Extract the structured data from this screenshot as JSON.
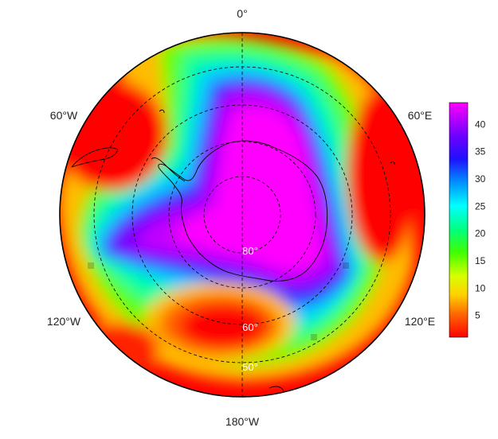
{
  "map": {
    "projection": "south-polar-stereographic",
    "longitude_labels": {
      "top": "0°",
      "upper_left": "60°W",
      "upper_right": "60°E",
      "lower_left": "120°W",
      "lower_right": "120°E",
      "bottom": "180°W"
    },
    "latitude_labels": [
      "80°",
      "60°",
      "50°"
    ],
    "colorbar": {
      "ticks": [
        "5",
        "10",
        "15",
        "20",
        "25",
        "30",
        "35",
        "40"
      ],
      "min": 1,
      "max": 44,
      "palette": [
        "#ff0000",
        "#ff6000",
        "#ffc000",
        "#e0ff00",
        "#80ff00",
        "#00ff20",
        "#00ffa0",
        "#00ffff",
        "#00a0ff",
        "#0040ff",
        "#3000ff",
        "#8000ff",
        "#c000ff",
        "#ff00ff"
      ]
    },
    "colors": {
      "background": "#ffffff",
      "outline": "#000000",
      "grid": "#000000",
      "coast": "#000000"
    }
  }
}
